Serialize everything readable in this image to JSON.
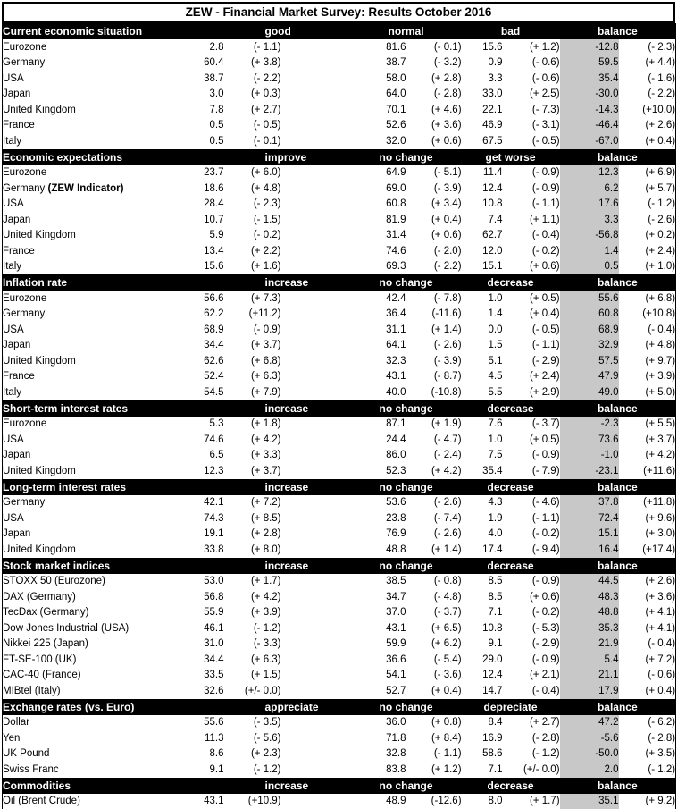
{
  "title": "ZEW - Financial Market Survey: Results October 2016",
  "colors": {
    "section_bg": "#000000",
    "section_text": "#ffffff",
    "balance_bg": "#c8c8c8"
  },
  "sections": [
    {
      "name": "Current economic situation",
      "columns": [
        "good",
        "normal",
        "bad",
        "balance"
      ],
      "rows": [
        {
          "label": "Eurozone",
          "values": [
            "2.8",
            "(- 1.1)",
            "81.6",
            "(- 0.1)",
            "15.6",
            "(+ 1.2)",
            "-12.8",
            "(- 2.3)"
          ]
        },
        {
          "label": "Germany",
          "values": [
            "60.4",
            "(+ 3.8)",
            "38.7",
            "(- 3.2)",
            "0.9",
            "(- 0.6)",
            "59.5",
            "(+ 4.4)"
          ]
        },
        {
          "label": "USA",
          "values": [
            "38.7",
            "(- 2.2)",
            "58.0",
            "(+ 2.8)",
            "3.3",
            "(- 0.6)",
            "35.4",
            "(- 1.6)"
          ]
        },
        {
          "label": "Japan",
          "values": [
            "3.0",
            "(+ 0.3)",
            "64.0",
            "(- 2.8)",
            "33.0",
            "(+ 2.5)",
            "-30.0",
            "(- 2.2)"
          ]
        },
        {
          "label": "United Kingdom",
          "values": [
            "7.8",
            "(+ 2.7)",
            "70.1",
            "(+ 4.6)",
            "22.1",
            "(- 7.3)",
            "-14.3",
            "(+10.0)"
          ]
        },
        {
          "label": "France",
          "values": [
            "0.5",
            "(- 0.5)",
            "52.6",
            "(+ 3.6)",
            "46.9",
            "(- 3.1)",
            "-46.4",
            "(+ 2.6)"
          ]
        },
        {
          "label": "Italy",
          "values": [
            "0.5",
            "(- 0.1)",
            "32.0",
            "(+ 0.6)",
            "67.5",
            "(- 0.5)",
            "-67.0",
            "(+ 0.4)"
          ]
        }
      ]
    },
    {
      "name": "Economic expectations",
      "columns": [
        "improve",
        "no change",
        "get worse",
        "balance"
      ],
      "rows": [
        {
          "label": "Eurozone",
          "values": [
            "23.7",
            "(+ 6.0)",
            "64.9",
            "(- 5.1)",
            "11.4",
            "(- 0.9)",
            "12.3",
            "(+ 6.9)"
          ]
        },
        {
          "label": "Germany ",
          "label_bold": "(ZEW Indicator)",
          "values": [
            "18.6",
            "(+ 4.8)",
            "69.0",
            "(- 3.9)",
            "12.4",
            "(- 0.9)",
            "6.2",
            "(+ 5.7)"
          ]
        },
        {
          "label": "USA",
          "values": [
            "28.4",
            "(- 2.3)",
            "60.8",
            "(+ 3.4)",
            "10.8",
            "(- 1.1)",
            "17.6",
            "(- 1.2)"
          ]
        },
        {
          "label": "Japan",
          "values": [
            "10.7",
            "(- 1.5)",
            "81.9",
            "(+ 0.4)",
            "7.4",
            "(+ 1.1)",
            "3.3",
            "(- 2.6)"
          ]
        },
        {
          "label": "United Kingdom",
          "values": [
            "5.9",
            "(- 0.2)",
            "31.4",
            "(+ 0.6)",
            "62.7",
            "(- 0.4)",
            "-56.8",
            "(+ 0.2)"
          ]
        },
        {
          "label": "France",
          "values": [
            "13.4",
            "(+ 2.2)",
            "74.6",
            "(- 2.0)",
            "12.0",
            "(- 0.2)",
            "1.4",
            "(+ 2.4)"
          ]
        },
        {
          "label": "Italy",
          "values": [
            "15.6",
            "(+ 1.6)",
            "69.3",
            "(- 2.2)",
            "15.1",
            "(+ 0.6)",
            "0.5",
            "(+ 1.0)"
          ]
        }
      ]
    },
    {
      "name": "Inflation rate",
      "columns": [
        "increase",
        "no change",
        "decrease",
        "balance"
      ],
      "rows": [
        {
          "label": "Eurozone",
          "values": [
            "56.6",
            "(+ 7.3)",
            "42.4",
            "(- 7.8)",
            "1.0",
            "(+ 0.5)",
            "55.6",
            "(+ 6.8)"
          ]
        },
        {
          "label": "Germany",
          "values": [
            "62.2",
            "(+11.2)",
            "36.4",
            "(-11.6)",
            "1.4",
            "(+ 0.4)",
            "60.8",
            "(+10.8)"
          ]
        },
        {
          "label": "USA",
          "values": [
            "68.9",
            "(- 0.9)",
            "31.1",
            "(+ 1.4)",
            "0.0",
            "(- 0.5)",
            "68.9",
            "(- 0.4)"
          ]
        },
        {
          "label": "Japan",
          "values": [
            "34.4",
            "(+ 3.7)",
            "64.1",
            "(- 2.6)",
            "1.5",
            "(- 1.1)",
            "32.9",
            "(+ 4.8)"
          ]
        },
        {
          "label": "United Kingdom",
          "values": [
            "62.6",
            "(+ 6.8)",
            "32.3",
            "(- 3.9)",
            "5.1",
            "(- 2.9)",
            "57.5",
            "(+ 9.7)"
          ]
        },
        {
          "label": "France",
          "values": [
            "52.4",
            "(+ 6.3)",
            "43.1",
            "(- 8.7)",
            "4.5",
            "(+ 2.4)",
            "47.9",
            "(+ 3.9)"
          ]
        },
        {
          "label": "Italy",
          "values": [
            "54.5",
            "(+ 7.9)",
            "40.0",
            "(-10.8)",
            "5.5",
            "(+ 2.9)",
            "49.0",
            "(+ 5.0)"
          ]
        }
      ]
    },
    {
      "name": "Short-term interest rates",
      "columns": [
        "increase",
        "no change",
        "decrease",
        "balance"
      ],
      "rows": [
        {
          "label": "Eurozone",
          "values": [
            "5.3",
            "(+ 1.8)",
            "87.1",
            "(+ 1.9)",
            "7.6",
            "(- 3.7)",
            "-2.3",
            "(+ 5.5)"
          ]
        },
        {
          "label": "USA",
          "values": [
            "74.6",
            "(+ 4.2)",
            "24.4",
            "(- 4.7)",
            "1.0",
            "(+ 0.5)",
            "73.6",
            "(+ 3.7)"
          ]
        },
        {
          "label": "Japan",
          "values": [
            "6.5",
            "(+ 3.3)",
            "86.0",
            "(- 2.4)",
            "7.5",
            "(- 0.9)",
            "-1.0",
            "(+ 4.2)"
          ]
        },
        {
          "label": "United Kingdom",
          "values": [
            "12.3",
            "(+ 3.7)",
            "52.3",
            "(+ 4.2)",
            "35.4",
            "(- 7.9)",
            "-23.1",
            "(+11.6)"
          ]
        }
      ]
    },
    {
      "name": "Long-term interest rates",
      "columns": [
        "increase",
        "no change",
        "decrease",
        "balance"
      ],
      "rows": [
        {
          "label": "Germany",
          "values": [
            "42.1",
            "(+ 7.2)",
            "53.6",
            "(- 2.6)",
            "4.3",
            "(- 4.6)",
            "37.8",
            "(+11.8)"
          ]
        },
        {
          "label": "USA",
          "values": [
            "74.3",
            "(+ 8.5)",
            "23.8",
            "(- 7.4)",
            "1.9",
            "(- 1.1)",
            "72.4",
            "(+ 9.6)"
          ]
        },
        {
          "label": "Japan",
          "values": [
            "19.1",
            "(+ 2.8)",
            "76.9",
            "(- 2.6)",
            "4.0",
            "(- 0.2)",
            "15.1",
            "(+ 3.0)"
          ]
        },
        {
          "label": "United Kingdom",
          "values": [
            "33.8",
            "(+ 8.0)",
            "48.8",
            "(+ 1.4)",
            "17.4",
            "(- 9.4)",
            "16.4",
            "(+17.4)"
          ]
        }
      ]
    },
    {
      "name": "Stock market indices",
      "columns": [
        "increase",
        "no change",
        "decrease",
        "balance"
      ],
      "rows": [
        {
          "label": "STOXX 50 (Eurozone)",
          "values": [
            "53.0",
            "(+ 1.7)",
            "38.5",
            "(- 0.8)",
            "8.5",
            "(- 0.9)",
            "44.5",
            "(+ 2.6)"
          ]
        },
        {
          "label": "DAX (Germany)",
          "values": [
            "56.8",
            "(+ 4.2)",
            "34.7",
            "(- 4.8)",
            "8.5",
            "(+ 0.6)",
            "48.3",
            "(+ 3.6)"
          ]
        },
        {
          "label": "TecDax (Germany)",
          "values": [
            "55.9",
            "(+ 3.9)",
            "37.0",
            "(- 3.7)",
            "7.1",
            "(- 0.2)",
            "48.8",
            "(+ 4.1)"
          ]
        },
        {
          "label": "Dow Jones Industrial (USA)",
          "values": [
            "46.1",
            "(- 1.2)",
            "43.1",
            "(+ 6.5)",
            "10.8",
            "(- 5.3)",
            "35.3",
            "(+ 4.1)"
          ]
        },
        {
          "label": "Nikkei 225 (Japan)",
          "values": [
            "31.0",
            "(- 3.3)",
            "59.9",
            "(+ 6.2)",
            "9.1",
            "(- 2.9)",
            "21.9",
            "(- 0.4)"
          ]
        },
        {
          "label": "FT-SE-100 (UK)",
          "values": [
            "34.4",
            "(+ 6.3)",
            "36.6",
            "(- 5.4)",
            "29.0",
            "(- 0.9)",
            "5.4",
            "(+ 7.2)"
          ]
        },
        {
          "label": "CAC-40 (France)",
          "values": [
            "33.5",
            "(+ 1.5)",
            "54.1",
            "(- 3.6)",
            "12.4",
            "(+ 2.1)",
            "21.1",
            "(- 0.6)"
          ]
        },
        {
          "label": "MIBtel (Italy)",
          "values": [
            "32.6",
            "(+/- 0.0)",
            "52.7",
            "(+ 0.4)",
            "14.7",
            "(- 0.4)",
            "17.9",
            "(+ 0.4)"
          ]
        }
      ]
    },
    {
      "name": "Exchange rates (vs. Euro)",
      "columns": [
        "appreciate",
        "no change",
        "depreciate",
        "balance"
      ],
      "rows": [
        {
          "label": "Dollar",
          "values": [
            "55.6",
            "(- 3.5)",
            "36.0",
            "(+ 0.8)",
            "8.4",
            "(+ 2.7)",
            "47.2",
            "(- 6.2)"
          ]
        },
        {
          "label": "Yen",
          "values": [
            "11.3",
            "(- 5.6)",
            "71.8",
            "(+ 8.4)",
            "16.9",
            "(- 2.8)",
            "-5.6",
            "(- 2.8)"
          ]
        },
        {
          "label": "UK Pound",
          "values": [
            "8.6",
            "(+ 2.3)",
            "32.8",
            "(- 1.1)",
            "58.6",
            "(- 1.2)",
            "-50.0",
            "(+ 3.5)"
          ]
        },
        {
          "label": "Swiss Franc",
          "values": [
            "9.1",
            "(- 1.2)",
            "83.8",
            "(+ 1.2)",
            "7.1",
            "(+/- 0.0)",
            "2.0",
            "(- 1.2)"
          ]
        }
      ]
    },
    {
      "name": "Commodities",
      "columns": [
        "increase",
        "no change",
        "decrease",
        "balance"
      ],
      "rows": [
        {
          "label": "Oil (Brent Crude)",
          "values": [
            "43.1",
            "(+10.9)",
            "48.9",
            "(-12.6)",
            "8.0",
            "(+ 1.7)",
            "35.1",
            "(+ 9.2)"
          ]
        }
      ]
    }
  ]
}
